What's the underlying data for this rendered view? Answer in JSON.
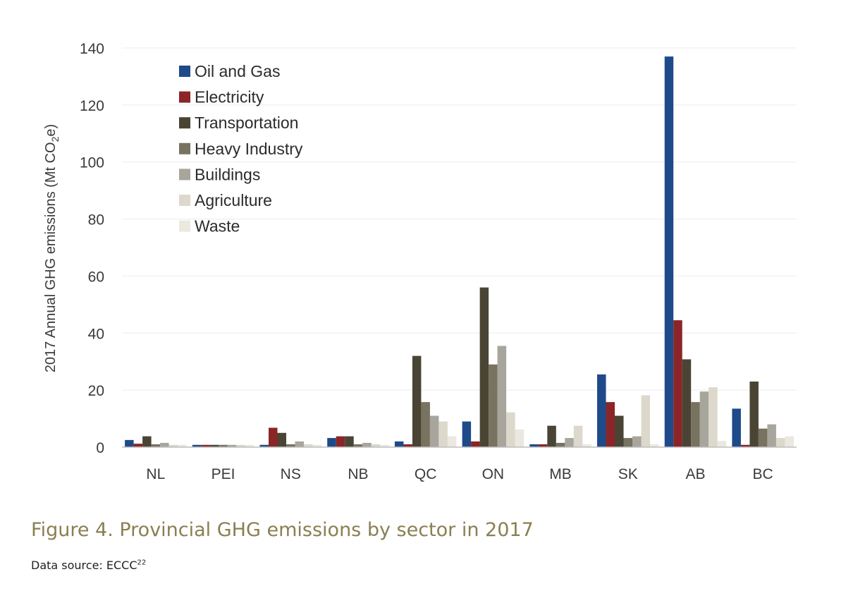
{
  "chart_data": {
    "type": "bar",
    "categories": [
      "NL",
      "PEI",
      "NS",
      "NB",
      "QC",
      "ON",
      "MB",
      "SK",
      "AB",
      "BC"
    ],
    "series": [
      {
        "name": "Oil and Gas",
        "color": "#1f4a8a",
        "values": [
          2.5,
          0.8,
          0.8,
          3.2,
          2.0,
          9.0,
          1.0,
          25.5,
          137.0,
          13.5
        ]
      },
      {
        "name": "Electricity",
        "color": "#8b2527",
        "values": [
          1.2,
          0.8,
          6.8,
          3.8,
          1.0,
          2.0,
          1.0,
          15.8,
          44.5,
          0.8
        ]
      },
      {
        "name": "Transportation",
        "color": "#4a4435",
        "values": [
          3.8,
          0.8,
          5.0,
          3.8,
          32.0,
          56.0,
          7.5,
          11.0,
          30.8,
          23.0
        ]
      },
      {
        "name": "Heavy Industry",
        "color": "#787260",
        "values": [
          1.0,
          0.8,
          1.0,
          1.0,
          15.8,
          29.0,
          1.5,
          3.2,
          15.8,
          6.5
        ]
      },
      {
        "name": "Buildings",
        "color": "#a7a59c",
        "values": [
          1.5,
          0.8,
          2.0,
          1.5,
          11.0,
          35.5,
          3.2,
          3.8,
          19.5,
          8.0
        ]
      },
      {
        "name": "Agriculture",
        "color": "#dcd8cb",
        "values": [
          0.8,
          0.8,
          1.0,
          1.0,
          9.0,
          12.2,
          7.5,
          18.2,
          21.0,
          3.2
        ]
      },
      {
        "name": "Waste",
        "color": "#ebe8df",
        "values": [
          0.8,
          0.8,
          0.8,
          0.8,
          3.8,
          6.2,
          1.0,
          1.0,
          2.2,
          3.8
        ]
      }
    ],
    "ylim": [
      0,
      140
    ],
    "yticks": [
      0,
      20,
      40,
      60,
      80,
      100,
      120,
      140
    ],
    "ylabel_prefix": "2017 Annual GHG emissions (Mt CO",
    "ylabel_sub": "2",
    "ylabel_suffix": "e)",
    "xlabel": "",
    "legend_position": "top-left",
    "grid": true
  },
  "caption": "Figure 4. Provincial GHG emissions by sector in 2017",
  "source_text": "Data source: ECCC",
  "source_ref": "22"
}
